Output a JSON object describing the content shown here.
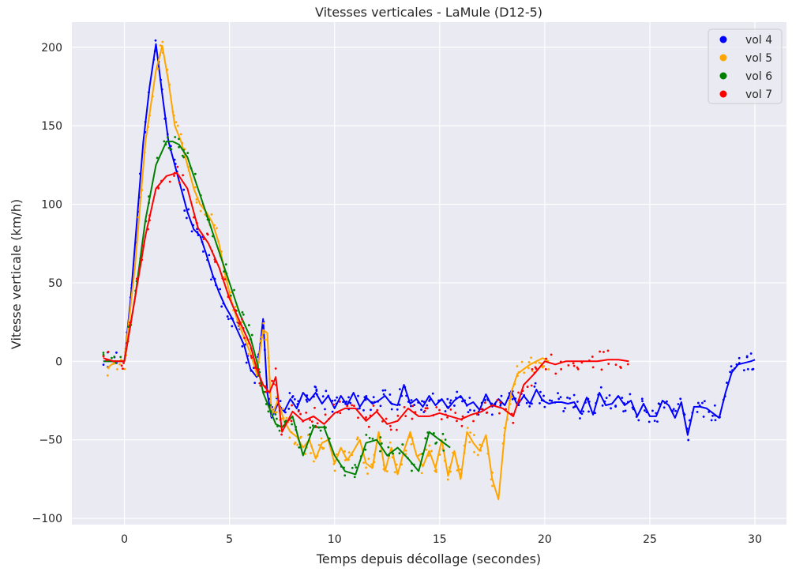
{
  "chart_data": {
    "type": "line",
    "title": "Vitesses verticales - LaMule (D12-5)",
    "xlabel": "Temps depuis décollage (secondes)",
    "ylabel": "Vitesse verticale (km/h)",
    "xlim": [
      -2.5,
      31.5
    ],
    "ylim": [
      -104,
      216
    ],
    "xticks": [
      0,
      5,
      10,
      15,
      20,
      25,
      30
    ],
    "xtick_labels": [
      "0",
      "5",
      "10",
      "15",
      "20",
      "25",
      "30"
    ],
    "yticks": [
      -100,
      -50,
      0,
      50,
      100,
      150,
      200
    ],
    "ytick_labels": [
      "−100",
      "−50",
      "0",
      "50",
      "100",
      "150",
      "200"
    ],
    "grid": true,
    "background": "#eaeaf2",
    "legend_position": "top-right",
    "series": [
      {
        "name": "vol 4",
        "color": "#0000ff",
        "x": [
          -1,
          -0.5,
          0,
          0.3,
          0.6,
          0.9,
          1.2,
          1.5,
          1.8,
          2.1,
          2.4,
          2.7,
          3,
          3.3,
          3.6,
          3.9,
          4.2,
          4.5,
          4.8,
          5.1,
          5.4,
          5.7,
          6,
          6.3,
          6.6,
          6.8,
          7,
          7.3,
          7.6,
          7.9,
          8.2,
          8.5,
          8.8,
          9.1,
          9.4,
          9.7,
          10,
          10.3,
          10.6,
          10.9,
          11.2,
          11.5,
          11.8,
          12.1,
          12.4,
          12.7,
          13,
          13.3,
          13.6,
          13.9,
          14.2,
          14.5,
          14.8,
          15.1,
          15.4,
          15.7,
          16,
          16.3,
          16.6,
          16.9,
          17.2,
          17.5,
          17.8,
          18.1,
          18.4,
          18.7,
          19,
          19.3,
          19.6,
          19.9,
          20.2,
          20.5,
          20.8,
          21.1,
          21.4,
          21.7,
          22,
          22.3,
          22.6,
          22.9,
          23.2,
          23.5,
          23.8,
          24.1,
          24.4,
          24.7,
          25,
          25.3,
          25.6,
          25.9,
          26.2,
          26.5,
          26.8,
          27.1,
          27.4,
          27.7,
          28,
          28.3,
          28.6,
          28.9,
          29.2,
          29.5,
          29.8,
          30
        ],
        "y": [
          0,
          0,
          0,
          40,
          90,
          140,
          175,
          202,
          170,
          140,
          125,
          110,
          95,
          84,
          80,
          68,
          55,
          44,
          35,
          28,
          19,
          10,
          -5,
          -10,
          27,
          -20,
          -36,
          -27,
          -32,
          -24,
          -30,
          -20,
          -25,
          -20,
          -27,
          -22,
          -30,
          -22,
          -28,
          -20,
          -29,
          -23,
          -27,
          -25,
          -22,
          -27,
          -28,
          -15,
          -27,
          -24,
          -29,
          -22,
          -28,
          -24,
          -30,
          -25,
          -22,
          -28,
          -26,
          -31,
          -21,
          -29,
          -24,
          -28,
          -19,
          -28,
          -22,
          -27,
          -18,
          -25,
          -27,
          -26,
          -26,
          -27,
          -26,
          -33,
          -23,
          -34,
          -20,
          -28,
          -27,
          -22,
          -28,
          -25,
          -35,
          -27,
          -35,
          -35,
          -25,
          -28,
          -36,
          -26,
          -47,
          -29,
          -29,
          -30,
          -33,
          -36,
          -20,
          -7,
          -2,
          -1,
          0,
          1
        ]
      },
      {
        "name": "vol 5",
        "color": "#ffa500",
        "x": [
          -0.8,
          -0.4,
          0,
          0.5,
          1,
          1.5,
          1.8,
          2.1,
          2.4,
          2.7,
          3,
          3.3,
          3.6,
          3.9,
          4.2,
          4.5,
          4.8,
          5.1,
          5.4,
          5.7,
          6,
          6.3,
          6.6,
          6.8,
          7,
          7.3,
          7.6,
          7.9,
          8.2,
          8.5,
          8.8,
          9.1,
          9.4,
          9.7,
          10,
          10.3,
          10.6,
          10.9,
          11.2,
          11.5,
          11.8,
          12.1,
          12.4,
          12.7,
          13,
          13.3,
          13.6,
          13.9,
          14.2,
          14.5,
          14.8,
          15.1,
          15.4,
          15.7,
          16,
          16.3,
          16.6,
          16.9,
          17.2,
          17.5,
          17.8,
          18.1,
          18.4,
          18.7,
          19,
          19.3,
          19.6,
          19.9,
          20.2
        ],
        "y": [
          -4,
          0,
          0,
          60,
          140,
          185,
          201,
          178,
          150,
          140,
          125,
          110,
          100,
          95,
          88,
          75,
          55,
          38,
          25,
          15,
          5,
          -8,
          20,
          18,
          -35,
          -25,
          -38,
          -45,
          -48,
          -55,
          -50,
          -62,
          -52,
          -50,
          -65,
          -55,
          -63,
          -57,
          -50,
          -65,
          -68,
          -45,
          -70,
          -55,
          -72,
          -57,
          -45,
          -60,
          -67,
          -57,
          -68,
          -50,
          -73,
          -57,
          -75,
          -45,
          -52,
          -57,
          -47,
          -75,
          -88,
          -45,
          -20,
          -8,
          -5,
          -2,
          0,
          2,
          0
        ]
      },
      {
        "name": "vol 6",
        "color": "#008000",
        "x": [
          -1,
          -0.5,
          0,
          0.5,
          1,
          1.5,
          2,
          2.3,
          2.6,
          3,
          3.5,
          4,
          4.5,
          5,
          5.5,
          6,
          6.3,
          6.6,
          6.9,
          7.2,
          7.5,
          8,
          8.5,
          9,
          9.5,
          10,
          10.5,
          11,
          11.5,
          12,
          12.5,
          13,
          13.5,
          14,
          14.5,
          15,
          15.5
        ],
        "y": [
          0,
          0,
          0,
          40,
          90,
          125,
          140,
          140,
          138,
          130,
          110,
          90,
          70,
          50,
          30,
          15,
          0,
          -20,
          -30,
          -40,
          -42,
          -35,
          -60,
          -42,
          -42,
          -60,
          -70,
          -72,
          -52,
          -50,
          -60,
          -55,
          -62,
          -70,
          -45,
          -50,
          -55
        ]
      },
      {
        "name": "vol 7",
        "color": "#ff0000",
        "x": [
          -1,
          -0.5,
          0,
          0.5,
          1,
          1.5,
          2,
          2.5,
          3,
          3.5,
          4,
          4.5,
          5,
          5.5,
          6,
          6.3,
          6.6,
          6.9,
          7.2,
          7.5,
          8,
          8.5,
          9,
          9.5,
          10,
          10.5,
          11,
          11.5,
          12,
          12.5,
          13,
          13.5,
          14,
          14.5,
          15,
          15.5,
          16,
          16.5,
          17,
          17.5,
          18,
          18.5,
          19,
          19.5,
          20,
          20.5,
          21,
          21.5,
          22,
          22.5,
          23,
          23.5,
          24
        ],
        "y": [
          2,
          0,
          0,
          40,
          80,
          110,
          118,
          120,
          110,
          85,
          75,
          60,
          40,
          25,
          10,
          -5,
          -15,
          -20,
          -10,
          -45,
          -32,
          -38,
          -35,
          -40,
          -33,
          -30,
          -30,
          -38,
          -32,
          -40,
          -38,
          -30,
          -35,
          -35,
          -33,
          -35,
          -37,
          -34,
          -32,
          -28,
          -30,
          -35,
          -15,
          -8,
          0,
          -2,
          0,
          0,
          0,
          0,
          1,
          1,
          0
        ]
      }
    ]
  }
}
